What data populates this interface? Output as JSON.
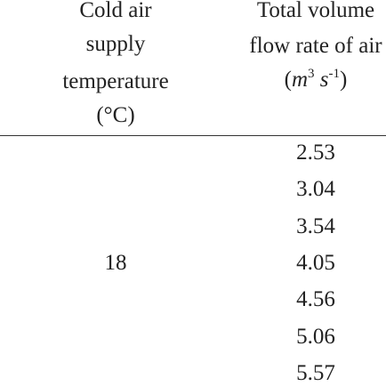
{
  "header": {
    "col1": [
      "Cold air",
      "supply",
      "temperature",
      "(°C)"
    ],
    "col2": [
      "Total volume",
      "flow rate of air"
    ],
    "unit": {
      "base1": "m",
      "exp1": "3",
      "base2": "s",
      "exp2": "-1"
    }
  },
  "table": {
    "temperature": "18",
    "flow_rates": [
      2.53,
      3.04,
      3.54,
      4.05,
      4.56,
      5.06,
      5.57
    ]
  }
}
